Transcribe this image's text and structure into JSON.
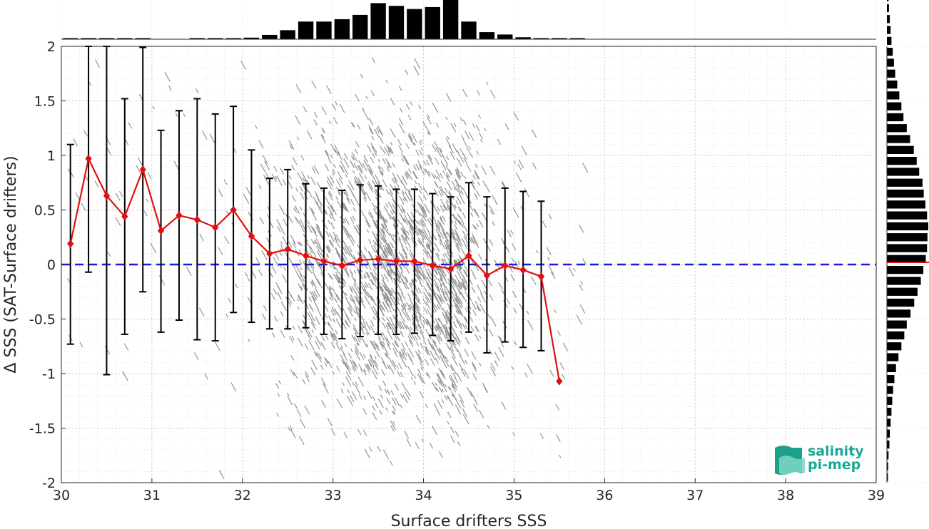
{
  "chart_data": {
    "type": "scatter",
    "xlabel": "Surface drifters SSS",
    "ylabel": "Δ SSS (SAT-Surface drifters)",
    "xlim": [
      30,
      39
    ],
    "ylim": [
      -2,
      2
    ],
    "x_ticks": [
      "30",
      "31",
      "32",
      "33",
      "34",
      "35",
      "36",
      "37",
      "38",
      "39"
    ],
    "y_ticks": [
      "2",
      "1.5",
      "1",
      "0.5",
      "0",
      "-0.5",
      "-1",
      "-1.5",
      "-2"
    ],
    "grid": true,
    "reference_line": {
      "y": 0,
      "style": "dashed",
      "color": "#1a1adb"
    },
    "binned_mean": {
      "color": "#e01010",
      "x": [
        30.1,
        30.3,
        30.5,
        30.7,
        30.9,
        31.1,
        31.3,
        31.5,
        31.7,
        31.9,
        32.1,
        32.3,
        32.5,
        32.7,
        32.9,
        33.1,
        33.3,
        33.5,
        33.7,
        33.9,
        34.1,
        34.3,
        34.5,
        34.7,
        34.9,
        35.1,
        35.3,
        35.5
      ],
      "mean": [
        0.19,
        0.97,
        0.63,
        0.44,
        0.87,
        0.31,
        0.45,
        0.41,
        0.34,
        0.5,
        0.26,
        0.1,
        0.14,
        0.08,
        0.03,
        -0.01,
        0.04,
        0.05,
        0.03,
        0.03,
        -0.01,
        -0.04,
        0.08,
        -0.1,
        -0.01,
        -0.05,
        -0.11,
        -1.07
      ],
      "lower": [
        -0.73,
        -0.07,
        -1.01,
        -0.64,
        -0.25,
        -0.62,
        -0.51,
        -0.69,
        -0.7,
        -0.44,
        -0.53,
        -0.59,
        -0.59,
        -0.58,
        -0.64,
        -0.68,
        -0.66,
        -0.64,
        -0.64,
        -0.63,
        -0.65,
        -0.7,
        -0.62,
        -0.81,
        -0.71,
        -0.76,
        -0.79,
        null
      ],
      "upper": [
        1.1,
        2.0,
        2.0,
        1.52,
        1.99,
        1.23,
        1.41,
        1.52,
        1.38,
        1.45,
        1.05,
        0.79,
        0.87,
        0.74,
        0.7,
        0.68,
        0.73,
        0.72,
        0.69,
        0.69,
        0.65,
        0.62,
        0.75,
        0.62,
        0.7,
        0.67,
        0.58,
        null
      ]
    },
    "scatter_color": "#8a8a8a",
    "x_histogram": {
      "color": "#000000",
      "bin_edges_start": 30,
      "bin_width": 0.2,
      "relative_heights": [
        0.01,
        0.01,
        0.01,
        0.01,
        0.01,
        0.0,
        0.0,
        0.01,
        0.01,
        0.02,
        0.04,
        0.11,
        0.23,
        0.45,
        0.45,
        0.51,
        0.62,
        0.92,
        0.85,
        0.77,
        0.82,
        1.0,
        0.45,
        0.18,
        0.12,
        0.05,
        0.02,
        0.02,
        0.02
      ]
    },
    "y_histogram": {
      "color": "#000000",
      "bin_edges_start": -2,
      "bin_width": 0.1,
      "relative_heights": [
        0.02,
        0.03,
        0.04,
        0.06,
        0.07,
        0.09,
        0.11,
        0.13,
        0.15,
        0.18,
        0.22,
        0.28,
        0.35,
        0.42,
        0.48,
        0.57,
        0.66,
        0.74,
        0.82,
        0.88,
        0.94,
        0.97,
        0.98,
        1.0,
        0.97,
        0.93,
        0.89,
        0.86,
        0.78,
        0.72,
        0.65,
        0.56,
        0.48,
        0.4,
        0.35,
        0.3,
        0.25,
        0.2,
        0.17,
        0.14,
        0.11,
        0.09,
        0.07,
        0.05,
        0.04,
        0.03,
        0.02,
        0.02
      ]
    },
    "mean_line_on_y_histogram": {
      "y": 0.02,
      "color": "#e01010"
    }
  },
  "logo": {
    "line1": "salinity",
    "line2": "pi-mep"
  }
}
